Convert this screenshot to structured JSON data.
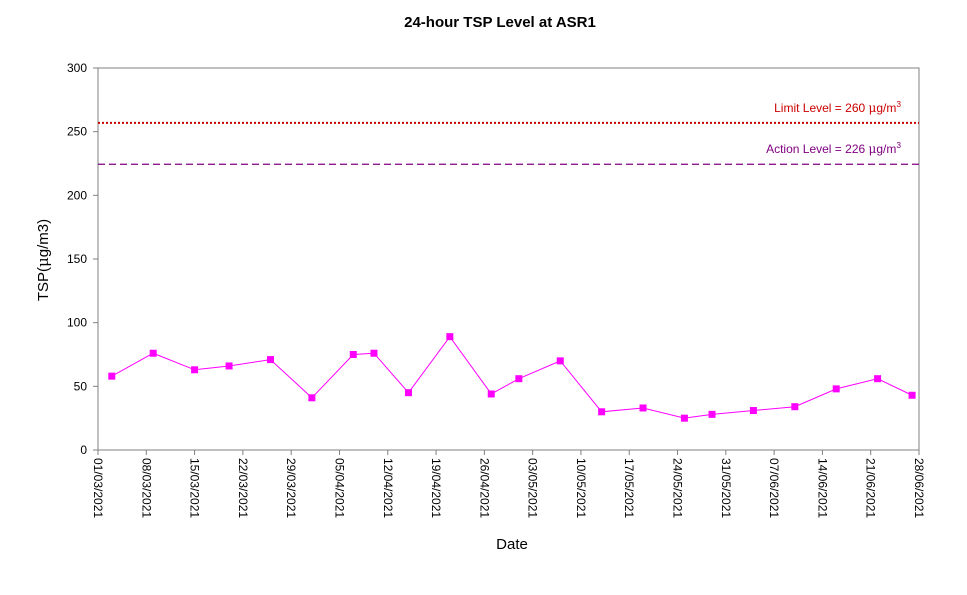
{
  "chart_data": {
    "type": "line",
    "title": "24-hour TSP Level at ASR1",
    "xlabel": "Date",
    "ylabel": "TSP(µg/m3)",
    "ylim": [
      0,
      300
    ],
    "yticks": [
      0,
      50,
      100,
      150,
      200,
      250,
      300
    ],
    "xlim": [
      "2021-03-01",
      "2021-06-28"
    ],
    "xticks": [
      "01/03/2021",
      "08/03/2021",
      "15/03/2021",
      "22/03/2021",
      "29/03/2021",
      "05/04/2021",
      "12/04/2021",
      "19/04/2021",
      "26/04/2021",
      "03/05/2021",
      "10/05/2021",
      "17/05/2021",
      "24/05/2021",
      "31/05/2021",
      "07/06/2021",
      "14/06/2021",
      "21/06/2021",
      "28/06/2021"
    ],
    "grid": false,
    "series": [
      {
        "color": "#ff00ff",
        "marker": "square",
        "x": [
          "2021-03-03",
          "2021-03-09",
          "2021-03-15",
          "2021-03-20",
          "2021-03-26",
          "2021-04-01",
          "2021-04-07",
          "2021-04-10",
          "2021-04-15",
          "2021-04-21",
          "2021-04-27",
          "2021-05-01",
          "2021-05-07",
          "2021-05-13",
          "2021-05-19",
          "2021-05-25",
          "2021-05-29",
          "2021-06-04",
          "2021-06-10",
          "2021-06-16",
          "2021-06-22",
          "2021-06-27"
        ],
        "y": [
          58,
          76,
          63,
          66,
          71,
          41,
          75,
          76,
          45,
          89,
          44,
          56,
          70,
          30,
          33,
          25,
          28,
          31,
          34,
          48,
          56,
          43
        ]
      }
    ],
    "reference_lines": [
      {
        "label": "Limit Level  = 260 µg/m3",
        "value": 260,
        "color": "#cc0000",
        "style": "dotted"
      },
      {
        "label": "Action Level  = 226 µg/m3",
        "value": 226,
        "color": "#800080",
        "style": "dashed"
      }
    ]
  }
}
